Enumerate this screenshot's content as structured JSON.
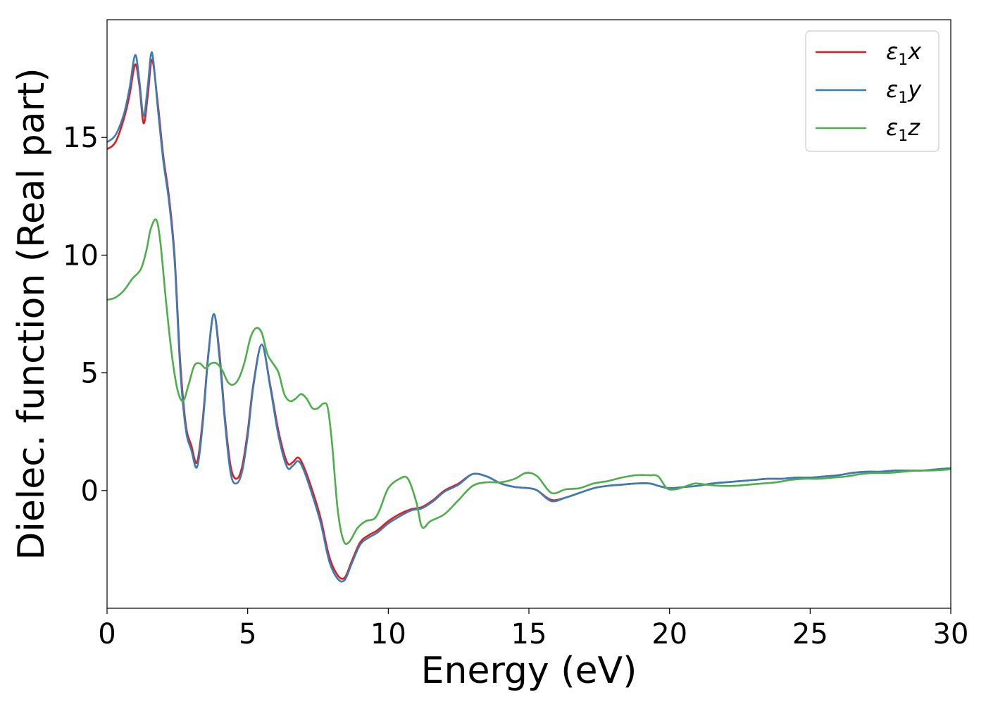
{
  "chart_data": {
    "type": "line",
    "xlabel": "Energy (eV)",
    "ylabel": "Dielec. function (Real part)",
    "xlim": [
      0,
      30
    ],
    "ylim": [
      -5,
      20
    ],
    "xticks": [
      0,
      5,
      10,
      15,
      20,
      25,
      30
    ],
    "yticks": [
      0,
      5,
      10,
      15
    ],
    "grid": false,
    "legend_position": "top-right",
    "series": [
      {
        "name": "ε1x",
        "legend": {
          "base": "ε",
          "sub": "1",
          "suffix": "x"
        },
        "color": "#e41a1c",
        "x": [
          0,
          0.3,
          0.6,
          0.8,
          1.0,
          1.15,
          1.3,
          1.45,
          1.6,
          1.8,
          2.0,
          2.2,
          2.4,
          2.6,
          2.8,
          3.0,
          3.2,
          3.4,
          3.6,
          3.8,
          4.0,
          4.2,
          4.4,
          4.6,
          4.8,
          5.0,
          5.2,
          5.5,
          5.8,
          6.1,
          6.4,
          6.6,
          6.8,
          7.0,
          7.3,
          7.6,
          7.9,
          8.2,
          8.45,
          8.7,
          9.0,
          9.3,
          9.6,
          10.0,
          10.4,
          10.8,
          11.2,
          11.6,
          12.0,
          12.5,
          13.0,
          13.5,
          14.0,
          14.5,
          15.0,
          15.3,
          15.8,
          16.3,
          16.8,
          17.3,
          17.8,
          18.3,
          18.8,
          19.3,
          19.6,
          20.0,
          20.5,
          21.0,
          21.5,
          22.0,
          22.5,
          23.0,
          23.5,
          24.0,
          24.5,
          25.0,
          25.5,
          26.0,
          26.5,
          27.0,
          27.5,
          28.0,
          28.5,
          29.0,
          29.5,
          30.0
        ],
        "y": [
          14.5,
          14.8,
          15.8,
          16.8,
          18.1,
          17.2,
          15.6,
          16.8,
          18.3,
          16.5,
          14.2,
          12.5,
          10.0,
          5.5,
          2.8,
          1.9,
          1.2,
          3.0,
          5.8,
          7.5,
          5.8,
          3.0,
          1.0,
          0.5,
          1.0,
          2.5,
          4.5,
          6.2,
          4.5,
          2.5,
          1.2,
          1.2,
          1.4,
          1.0,
          0.0,
          -1.2,
          -2.8,
          -3.6,
          -3.7,
          -3.0,
          -2.2,
          -1.9,
          -1.7,
          -1.3,
          -1.0,
          -0.8,
          -0.7,
          -0.4,
          0.0,
          0.3,
          0.7,
          0.6,
          0.3,
          0.15,
          0.1,
          0.0,
          -0.4,
          -0.3,
          -0.1,
          0.1,
          0.2,
          0.25,
          0.3,
          0.3,
          0.2,
          0.1,
          0.15,
          0.2,
          0.3,
          0.35,
          0.4,
          0.45,
          0.5,
          0.5,
          0.55,
          0.55,
          0.6,
          0.65,
          0.75,
          0.8,
          0.8,
          0.85,
          0.85,
          0.85,
          0.9,
          0.95
        ]
      },
      {
        "name": "ε1y",
        "legend": {
          "base": "ε",
          "sub": "1",
          "suffix": "y"
        },
        "color": "#377eb8",
        "x": [
          0,
          0.3,
          0.6,
          0.8,
          1.0,
          1.15,
          1.3,
          1.45,
          1.6,
          1.8,
          2.0,
          2.2,
          2.4,
          2.6,
          2.8,
          3.0,
          3.2,
          3.4,
          3.6,
          3.8,
          4.0,
          4.2,
          4.4,
          4.6,
          4.8,
          5.0,
          5.2,
          5.5,
          5.8,
          6.1,
          6.4,
          6.6,
          6.8,
          7.0,
          7.3,
          7.6,
          7.9,
          8.2,
          8.45,
          8.7,
          9.0,
          9.3,
          9.6,
          10.0,
          10.4,
          10.8,
          11.2,
          11.6,
          12.0,
          12.5,
          13.0,
          13.5,
          14.0,
          14.5,
          15.0,
          15.3,
          15.8,
          16.3,
          16.8,
          17.3,
          17.8,
          18.3,
          18.8,
          19.3,
          19.6,
          20.0,
          20.5,
          21.0,
          21.5,
          22.0,
          22.5,
          23.0,
          23.5,
          24.0,
          24.5,
          25.0,
          25.5,
          26.0,
          26.5,
          27.0,
          27.5,
          28.0,
          28.5,
          29.0,
          29.5,
          30.0
        ],
        "y": [
          14.8,
          15.1,
          16.0,
          17.1,
          18.5,
          17.4,
          15.9,
          17.2,
          18.6,
          16.3,
          14.0,
          12.3,
          9.8,
          5.2,
          2.6,
          1.7,
          1.0,
          2.8,
          5.7,
          7.5,
          5.6,
          2.8,
          0.7,
          0.3,
          0.8,
          2.3,
          4.4,
          6.2,
          4.4,
          2.3,
          1.0,
          1.05,
          1.25,
          0.85,
          -0.2,
          -1.4,
          -3.0,
          -3.75,
          -3.8,
          -3.1,
          -2.3,
          -2.0,
          -1.8,
          -1.4,
          -1.1,
          -0.85,
          -0.75,
          -0.45,
          -0.05,
          0.25,
          0.7,
          0.6,
          0.3,
          0.15,
          0.1,
          0.0,
          -0.45,
          -0.3,
          -0.1,
          0.1,
          0.2,
          0.25,
          0.3,
          0.3,
          0.2,
          0.1,
          0.15,
          0.2,
          0.3,
          0.35,
          0.4,
          0.45,
          0.5,
          0.5,
          0.55,
          0.55,
          0.6,
          0.65,
          0.75,
          0.8,
          0.8,
          0.85,
          0.85,
          0.85,
          0.9,
          0.95
        ]
      },
      {
        "name": "ε1z",
        "legend": {
          "base": "ε",
          "sub": "1",
          "suffix": "z"
        },
        "color": "#4daf4a",
        "x": [
          0,
          0.3,
          0.6,
          0.9,
          1.2,
          1.4,
          1.55,
          1.75,
          1.9,
          2.1,
          2.3,
          2.5,
          2.7,
          2.9,
          3.1,
          3.3,
          3.5,
          3.7,
          3.9,
          4.1,
          4.3,
          4.5,
          4.7,
          4.9,
          5.1,
          5.3,
          5.5,
          5.7,
          5.9,
          6.1,
          6.3,
          6.5,
          6.7,
          6.9,
          7.1,
          7.3,
          7.5,
          7.7,
          7.85,
          8.0,
          8.2,
          8.4,
          8.6,
          8.9,
          9.2,
          9.5,
          9.7,
          10.0,
          10.4,
          10.7,
          11.0,
          11.2,
          11.5,
          12.0,
          12.5,
          13.0,
          13.5,
          14.0,
          14.5,
          14.9,
          15.3,
          15.8,
          16.3,
          16.8,
          17.3,
          17.8,
          18.3,
          18.8,
          19.3,
          19.6,
          19.9,
          20.2,
          20.5,
          20.9,
          21.3,
          21.8,
          22.3,
          22.8,
          23.3,
          23.8,
          24.3,
          24.8,
          25.3,
          25.8,
          26.3,
          26.8,
          27.3,
          27.8,
          28.3,
          28.8,
          29.3,
          30.0
        ],
        "y": [
          8.1,
          8.2,
          8.5,
          9.0,
          9.4,
          10.2,
          11.1,
          11.5,
          10.5,
          8.0,
          5.8,
          4.3,
          3.8,
          4.5,
          5.3,
          5.4,
          5.2,
          5.4,
          5.4,
          5.1,
          4.6,
          4.5,
          4.8,
          5.5,
          6.5,
          6.9,
          6.7,
          5.8,
          5.4,
          5.0,
          4.1,
          3.8,
          3.9,
          4.1,
          3.9,
          3.5,
          3.5,
          3.7,
          3.5,
          2.0,
          -0.8,
          -2.1,
          -2.2,
          -1.6,
          -1.3,
          -1.2,
          -0.8,
          0.1,
          0.5,
          0.5,
          -0.5,
          -1.55,
          -1.3,
          -1.0,
          -0.4,
          0.2,
          0.35,
          0.35,
          0.5,
          0.75,
          0.6,
          -0.1,
          0.05,
          0.1,
          0.3,
          0.4,
          0.55,
          0.65,
          0.65,
          0.6,
          0.1,
          0.05,
          0.15,
          0.3,
          0.25,
          0.2,
          0.2,
          0.25,
          0.3,
          0.35,
          0.45,
          0.5,
          0.5,
          0.55,
          0.6,
          0.7,
          0.75,
          0.75,
          0.8,
          0.85,
          0.85,
          0.9
        ]
      }
    ]
  }
}
